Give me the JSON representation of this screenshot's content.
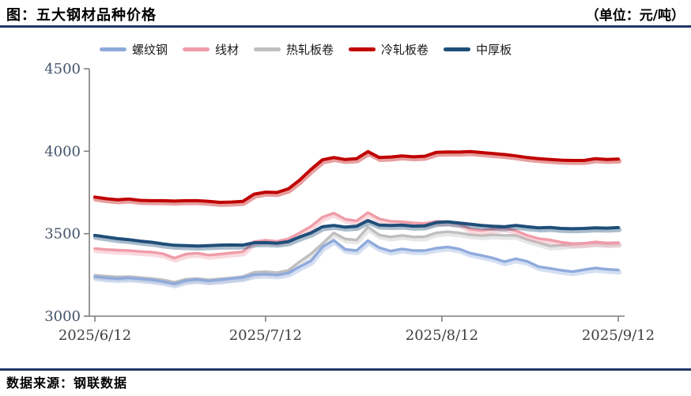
{
  "header": {
    "title": "图：五大钢材品种价格",
    "unit": "（单位：元/吨）"
  },
  "footer": {
    "source": "数据来源：钢联数据"
  },
  "colors": {
    "rule": "#1F3864",
    "axis": "#7F7F7F",
    "y_tick_label": "#44546A",
    "x_tick_label": "#404040",
    "rebar": "#8FAADC",
    "wire_rod": "#F09CA8",
    "hot_rolled": "#BFBFBF",
    "cold_rolled": "#C00000",
    "plate": "#1F4E79"
  },
  "chart_data": {
    "type": "line",
    "title": "五大钢材品种价格",
    "unit": "元/吨",
    "grid": false,
    "legend_position": "top",
    "ylim": [
      3000,
      4500
    ],
    "y_ticks": [
      "3000",
      "3500",
      "4000",
      "4500"
    ],
    "x_tick_labels": [
      "2025/6/12",
      "2025/7/12",
      "2025/8/12",
      "2025/9/12"
    ],
    "x_tick_days": [
      0,
      30,
      61,
      92
    ],
    "x_days": [
      0,
      2,
      4,
      6,
      8,
      10,
      12,
      14,
      16,
      18,
      20,
      22,
      24,
      26,
      28,
      30,
      32,
      34,
      36,
      38,
      40,
      42,
      44,
      46,
      48,
      50,
      52,
      54,
      56,
      58,
      60,
      62,
      64,
      66,
      68,
      70,
      72,
      74,
      76,
      78,
      80,
      82,
      84,
      86,
      88,
      90,
      92
    ],
    "series": [
      {
        "name": "螺纹钢",
        "color_key": "rebar",
        "values": [
          3240,
          3232,
          3228,
          3232,
          3226,
          3220,
          3210,
          3196,
          3216,
          3222,
          3214,
          3220,
          3228,
          3235,
          3252,
          3255,
          3250,
          3262,
          3300,
          3335,
          3420,
          3460,
          3405,
          3398,
          3458,
          3415,
          3395,
          3408,
          3398,
          3398,
          3412,
          3420,
          3408,
          3382,
          3368,
          3352,
          3330,
          3348,
          3332,
          3300,
          3290,
          3278,
          3270,
          3282,
          3292,
          3284,
          3280
        ]
      },
      {
        "name": "线材",
        "color_key": "wire_rod",
        "values": [
          3410,
          3404,
          3400,
          3398,
          3392,
          3388,
          3378,
          3352,
          3376,
          3382,
          3370,
          3376,
          3384,
          3390,
          3452,
          3460,
          3454,
          3468,
          3505,
          3545,
          3600,
          3625,
          3588,
          3578,
          3628,
          3590,
          3575,
          3572,
          3565,
          3562,
          3575,
          3572,
          3560,
          3528,
          3520,
          3530,
          3536,
          3518,
          3490,
          3470,
          3462,
          3448,
          3440,
          3442,
          3450,
          3444,
          3446
        ]
      },
      {
        "name": "热轧板卷",
        "color_key": "hot_rolled",
        "values": [
          3248,
          3242,
          3238,
          3240,
          3234,
          3228,
          3220,
          3206,
          3224,
          3228,
          3220,
          3226,
          3232,
          3240,
          3266,
          3270,
          3264,
          3278,
          3330,
          3378,
          3440,
          3505,
          3468,
          3462,
          3540,
          3492,
          3480,
          3490,
          3480,
          3482,
          3505,
          3512,
          3505,
          3494,
          3488,
          3494,
          3490,
          3490,
          3465,
          3445,
          3425,
          3430,
          3436,
          3440,
          3445,
          3440,
          3442
        ]
      },
      {
        "name": "冷轧板卷",
        "color_key": "cold_rolled",
        "values": [
          3722,
          3712,
          3706,
          3710,
          3702,
          3700,
          3700,
          3698,
          3700,
          3700,
          3696,
          3690,
          3692,
          3696,
          3740,
          3752,
          3750,
          3772,
          3825,
          3890,
          3948,
          3962,
          3950,
          3955,
          3998,
          3962,
          3965,
          3972,
          3966,
          3970,
          3993,
          3996,
          3995,
          3998,
          3992,
          3986,
          3980,
          3972,
          3962,
          3955,
          3950,
          3946,
          3944,
          3944,
          3955,
          3950,
          3952
        ]
      },
      {
        "name": "中厚板",
        "color_key": "plate",
        "values": [
          3490,
          3480,
          3470,
          3464,
          3455,
          3448,
          3438,
          3430,
          3428,
          3425,
          3428,
          3431,
          3432,
          3431,
          3445,
          3446,
          3443,
          3452,
          3480,
          3505,
          3542,
          3550,
          3540,
          3545,
          3580,
          3552,
          3550,
          3552,
          3546,
          3548,
          3568,
          3572,
          3565,
          3558,
          3550,
          3545,
          3542,
          3550,
          3542,
          3536,
          3538,
          3532,
          3530,
          3532,
          3536,
          3534,
          3537
        ]
      }
    ]
  }
}
